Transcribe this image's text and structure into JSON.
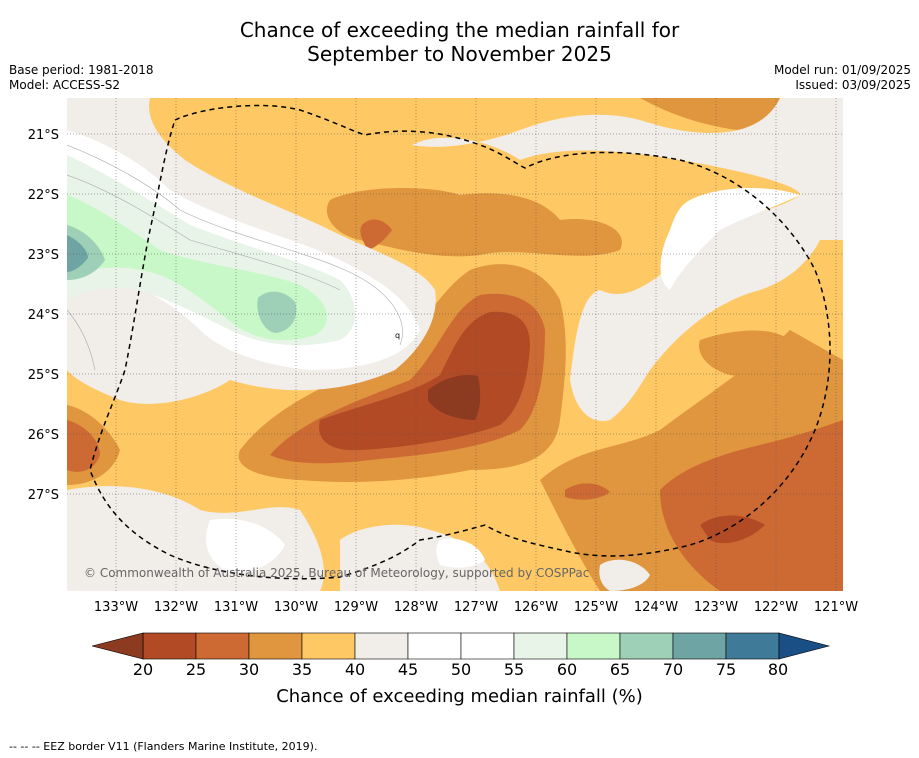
{
  "title_line1": "Chance of exceeding the median rainfall for",
  "title_line2": "September to November 2025",
  "base_period": "Base period: 1981-2018",
  "model": "Model: ACCESS-S2",
  "model_run": "Model run: 01/09/2025",
  "issued": "Issued: 03/09/2025",
  "credit": "© Commonwealth of Australia 2025, Bureau of Meteorology, supported by COSPPac",
  "lat_labels": [
    "21°S",
    "22°S",
    "23°S",
    "24°S",
    "25°S",
    "26°S",
    "27°S"
  ],
  "lon_labels": [
    "133°W",
    "132°W",
    "131°W",
    "130°W",
    "129°W",
    "128°W",
    "127°W",
    "126°W",
    "125°W",
    "124°W",
    "123°W",
    "122°W",
    "121°W"
  ],
  "colorbar": {
    "ticks": [
      "20",
      "25",
      "30",
      "35",
      "40",
      "45",
      "50",
      "55",
      "60",
      "65",
      "70",
      "75",
      "80"
    ],
    "colors": [
      "#b24a25",
      "#cd6a34",
      "#e0953f",
      "#fec965",
      "#f1ede9",
      "#ffffff",
      "#ffffff",
      "#e8f4e8",
      "#c8f8c8",
      "#9dd0b6",
      "#6ea4a4",
      "#3f7a98"
    ],
    "under_color": "#8c3a20",
    "over_color": "#1a4f86",
    "title": "Chance of exceeding median rainfall (%)"
  },
  "footer": "--  --  -- EEZ border V11 (Flanders Marine Institute, 2019).",
  "map_colors": {
    "base": "#fec965",
    "c30": "#e0953f",
    "c25": "#cd6a34",
    "c20": "#b24a25",
    "c15": "#8c3a20",
    "c45": "#f1ede9",
    "c50": "#ffffff",
    "c55": "#e8f4e8",
    "c60": "#c8f8c8",
    "c65": "#9dd0b6",
    "c70": "#6ea4a4"
  }
}
